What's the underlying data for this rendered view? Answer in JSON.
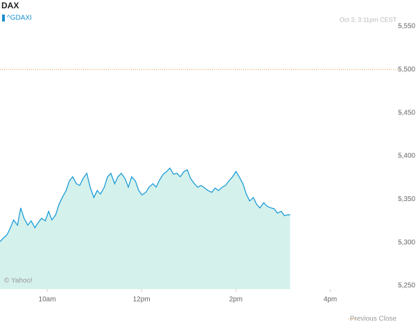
{
  "chart_data": {
    "type": "area",
    "title": "DAX",
    "symbol": "^GDAXI",
    "timestamp": "Oct 3, 3:11pm CEST",
    "watermark": "© Yahoo!",
    "color": "#1a9bd7",
    "fill": "#d5f1ec",
    "x": [
      9.0,
      9.07,
      9.15,
      9.22,
      9.29,
      9.37,
      9.44,
      9.51,
      9.59,
      9.66,
      9.74,
      9.81,
      9.88,
      9.96,
      10.03,
      10.1,
      10.18,
      10.25,
      10.32,
      10.4,
      10.47,
      10.54,
      10.62,
      10.69,
      10.76,
      10.84,
      10.91,
      10.99,
      11.06,
      11.13,
      11.21,
      11.28,
      11.35,
      11.43,
      11.5,
      11.57,
      11.65,
      11.72,
      11.79,
      11.87,
      11.94,
      12.01,
      12.09,
      12.16,
      12.24,
      12.31,
      12.38,
      12.46,
      12.53,
      12.6,
      12.68,
      12.75,
      12.82,
      12.9,
      12.97,
      13.04,
      13.12,
      13.19,
      13.26,
      13.34,
      13.41,
      13.49,
      13.56,
      13.63,
      13.71,
      13.78,
      13.85,
      13.93,
      14.0,
      14.07,
      14.15,
      14.22,
      14.29,
      14.37,
      14.44,
      14.51,
      14.59,
      14.66,
      14.74,
      14.81,
      14.88,
      14.96,
      15.03,
      15.1,
      15.15
    ],
    "values": [
      5301,
      5305,
      5309,
      5317,
      5326,
      5320,
      5340,
      5328,
      5320,
      5325,
      5317,
      5323,
      5328,
      5325,
      5336,
      5326,
      5332,
      5344,
      5352,
      5360,
      5371,
      5376,
      5368,
      5366,
      5374,
      5380,
      5364,
      5352,
      5360,
      5356,
      5364,
      5376,
      5380,
      5368,
      5376,
      5380,
      5374,
      5364,
      5376,
      5371,
      5360,
      5355,
      5358,
      5364,
      5368,
      5364,
      5372,
      5379,
      5382,
      5386,
      5379,
      5380,
      5376,
      5382,
      5384,
      5374,
      5368,
      5364,
      5366,
      5363,
      5360,
      5358,
      5363,
      5360,
      5364,
      5366,
      5371,
      5376,
      5382,
      5376,
      5368,
      5356,
      5348,
      5352,
      5344,
      5340,
      5346,
      5342,
      5340,
      5339,
      5334,
      5336,
      5331,
      5332,
      5332
    ],
    "xlim": [
      9,
      17.45
    ],
    "xticks": [
      {
        "value": 10,
        "label": "10am"
      },
      {
        "value": 12,
        "label": "12pm"
      },
      {
        "value": 14,
        "label": "2pm"
      },
      {
        "value": 16,
        "label": "4pm"
      }
    ],
    "ylim": [
      5246,
      5574
    ],
    "yticks": [
      {
        "value": 5250,
        "label": "5,250"
      },
      {
        "value": 5300,
        "label": "5,300"
      },
      {
        "value": 5350,
        "label": "5,350"
      },
      {
        "value": 5400,
        "label": "5,400"
      },
      {
        "value": 5450,
        "label": "5,450"
      },
      {
        "value": 5500,
        "label": "5,500"
      },
      {
        "value": 5550,
        "label": "5,550"
      }
    ],
    "previous_close": {
      "label": "Previous Close",
      "value": 5500,
      "color": "#e08a3a"
    }
  }
}
